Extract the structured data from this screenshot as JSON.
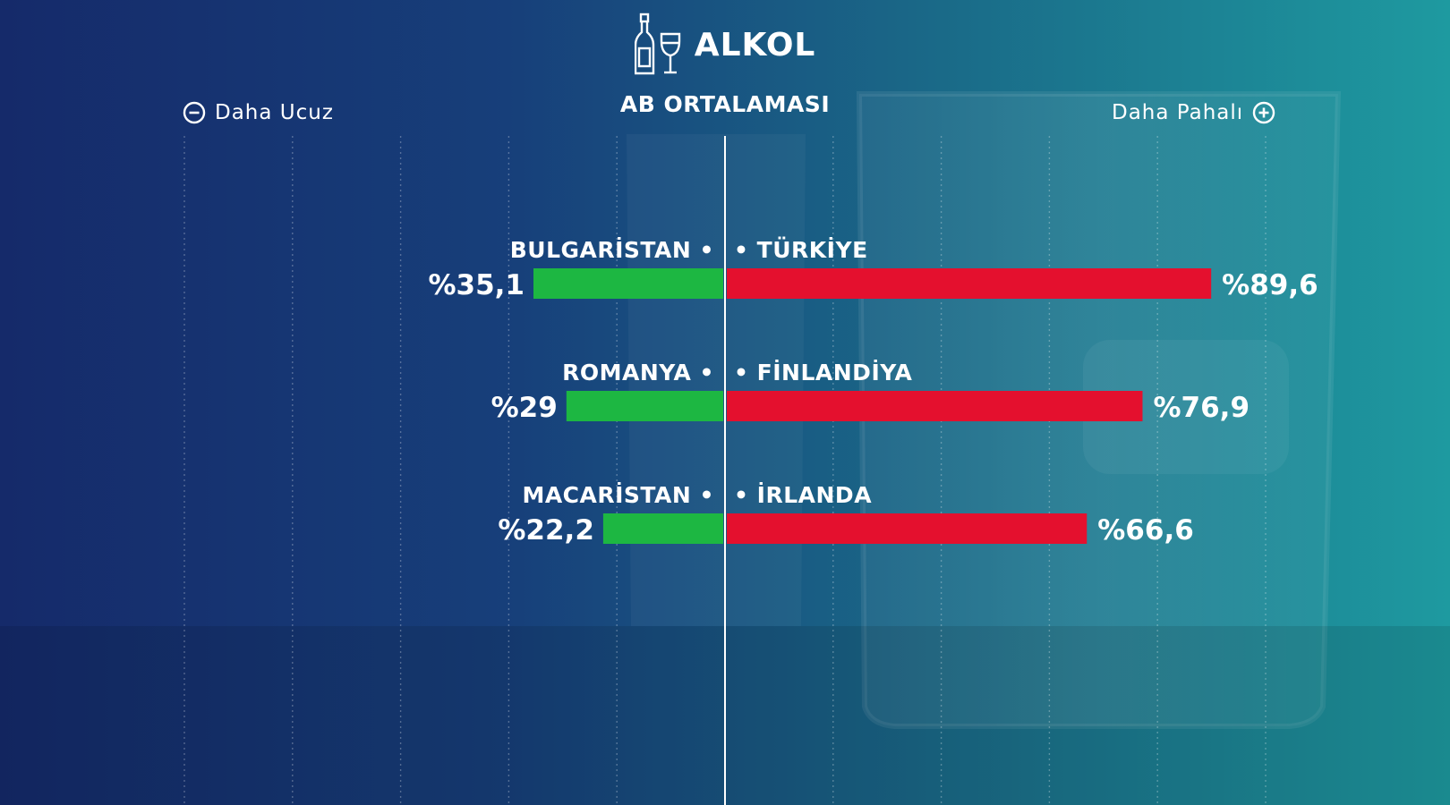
{
  "title": "ALKOL",
  "subtitle": "AB ORTALAMASI",
  "scale": {
    "cheaper_label": "Daha Ucuz",
    "expensive_label": "Daha Pahalı"
  },
  "icons": [
    "bottle-icon",
    "wine-glass-icon",
    "minus-circle-icon",
    "plus-circle-icon"
  ],
  "colors": {
    "cheaper": "#1db742",
    "expensive": "#e4102e",
    "background_start": "#152a6a",
    "background_end": "#1e9aa0"
  },
  "chart_data": {
    "type": "bar",
    "title": "ALKOL",
    "subtitle": "AB ORTALAMASI",
    "baseline": "AB ORTALAMASI",
    "units": "%",
    "xlim": [
      -100,
      100
    ],
    "series": [
      {
        "direction": "cheaper",
        "categories": [
          "BULGARİSTAN",
          "ROMANYA",
          "MACARİSTAN"
        ],
        "values": [
          -35.1,
          -29,
          -22.2
        ],
        "labels": [
          "%35,1",
          "%29",
          "%22,2"
        ]
      },
      {
        "direction": "expensive",
        "categories": [
          "TÜRKİYE",
          "FİNLANDİYA",
          "İRLANDA"
        ],
        "values": [
          89.6,
          76.9,
          66.6
        ],
        "labels": [
          "%89,6",
          "%76,9",
          "%66,6"
        ]
      }
    ]
  }
}
